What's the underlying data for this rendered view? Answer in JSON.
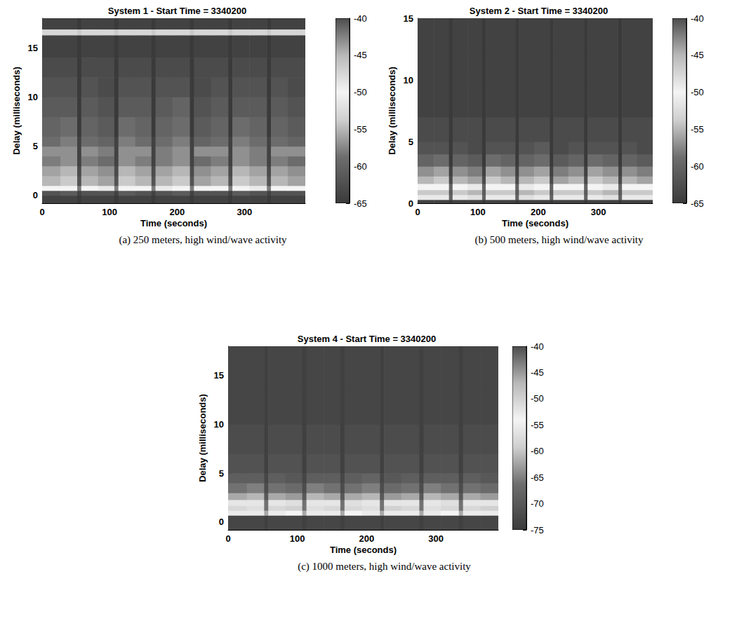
{
  "chart_data": [
    {
      "type": "heatmap",
      "title": "System 1 - Start Time = 3340200",
      "caption": "(a) 250 meters, high wind/wave activity",
      "xlabel": "Time (seconds)",
      "ylabel": "Delay (milliseconds)",
      "xlim": [
        0,
        390
      ],
      "xticks": [
        0,
        100,
        200,
        300
      ],
      "ylim": [
        -0.8,
        18
      ],
      "yticks": [
        0,
        5,
        10,
        15
      ],
      "time_bins": [
        0,
        27,
        52,
        58,
        83,
        107,
        113,
        138,
        162,
        168,
        193,
        219,
        225,
        250,
        276,
        282,
        307,
        333,
        339,
        364,
        390
      ],
      "delay_bins": [
        -0.8,
        0,
        0.5,
        1,
        2,
        3,
        4,
        5,
        6,
        8,
        10,
        12,
        14,
        16.3,
        16.9,
        18
      ],
      "cells": [
        [
          -64,
          -64,
          -65,
          -64,
          -64,
          -65,
          -64,
          -64,
          -65,
          -64,
          -64,
          -65,
          -64,
          -64,
          -65,
          -64,
          -64,
          -65,
          -64,
          -64
        ],
        [
          -62,
          -61,
          -64,
          -62,
          -62,
          -64,
          -61,
          -62,
          -64,
          -62,
          -61,
          -64,
          -62,
          -62,
          -64,
          -61,
          -62,
          -64,
          -62,
          -62
        ],
        [
          -50,
          -50,
          -58,
          -50,
          -51,
          -58,
          -50,
          -50,
          -58,
          -51,
          -50,
          -58,
          -50,
          -50,
          -58,
          -50,
          -51,
          -58,
          -50,
          -50
        ],
        [
          -55,
          -54,
          -62,
          -55,
          -56,
          -62,
          -54,
          -55,
          -62,
          -55,
          -54,
          -62,
          -56,
          -55,
          -62,
          -54,
          -55,
          -62,
          -55,
          -56
        ],
        [
          -56,
          -55,
          -63,
          -56,
          -57,
          -63,
          -55,
          -56,
          -63,
          -56,
          -55,
          -63,
          -57,
          -56,
          -63,
          -55,
          -56,
          -63,
          -56,
          -57
        ],
        [
          -58,
          -57,
          -64,
          -58,
          -59,
          -64,
          -57,
          -58,
          -64,
          -58,
          -57,
          -64,
          -59,
          -58,
          -64,
          -57,
          -58,
          -64,
          -58,
          -59
        ],
        [
          -57,
          -57,
          -64,
          -57,
          -58,
          -64,
          -57,
          -57,
          -64,
          -58,
          -57,
          -64,
          -57,
          -57,
          -64,
          -57,
          -58,
          -64,
          -57,
          -57
        ],
        [
          -59,
          -58,
          -64,
          -59,
          -60,
          -64,
          -58,
          -59,
          -64,
          -59,
          -58,
          -64,
          -60,
          -59,
          -64,
          -58,
          -59,
          -64,
          -59,
          -60
        ],
        [
          -60,
          -59,
          -65,
          -60,
          -61,
          -65,
          -59,
          -60,
          -65,
          -60,
          -59,
          -65,
          -61,
          -60,
          -65,
          -59,
          -60,
          -65,
          -60,
          -61
        ],
        [
          -61,
          -61,
          -65,
          -61,
          -62,
          -65,
          -61,
          -61,
          -65,
          -61,
          -60,
          -65,
          -62,
          -61,
          -65,
          -61,
          -61,
          -65,
          -61,
          -62
        ],
        [
          -62,
          -62,
          -65,
          -62,
          -63,
          -65,
          -62,
          -62,
          -65,
          -62,
          -62,
          -65,
          -63,
          -62,
          -65,
          -62,
          -62,
          -65,
          -62,
          -63
        ],
        [
          -63,
          -63,
          -65,
          -63,
          -63,
          -65,
          -63,
          -63,
          -65,
          -63,
          -63,
          -65,
          -63,
          -63,
          -65,
          -63,
          -63,
          -65,
          -63,
          -63
        ],
        [
          -64,
          -64,
          -65,
          -64,
          -64,
          -65,
          -64,
          -64,
          -65,
          -64,
          -64,
          -65,
          -64,
          -64,
          -65,
          -64,
          -64,
          -65,
          -64,
          -64
        ],
        [
          -53,
          -53,
          -54,
          -53,
          -53,
          -54,
          -53,
          -53,
          -54,
          -53,
          -53,
          -54,
          -53,
          -53,
          -54,
          -53,
          -53,
          -54,
          -53,
          -53
        ],
        [
          -64,
          -64,
          -65,
          -64,
          -64,
          -65,
          -64,
          -64,
          -65,
          -64,
          -64,
          -65,
          -64,
          -64,
          -65,
          -64,
          -64,
          -65,
          -64,
          -64
        ]
      ],
      "colorbar": {
        "range": [
          -65,
          -40
        ],
        "ticks": [
          -40,
          -45,
          -50,
          -55,
          -60,
          -65
        ]
      }
    },
    {
      "type": "heatmap",
      "title": "System 2 - Start Time = 3340200",
      "caption": "(b) 500 meters, high wind/wave activity",
      "xlabel": "Time (seconds)",
      "ylabel": "Delay (milliseconds)",
      "xlim": [
        0,
        390
      ],
      "xticks": [
        0,
        100,
        200,
        300
      ],
      "ylim": [
        0,
        15
      ],
      "yticks": [
        0,
        5,
        10,
        15
      ],
      "time_bins": [
        0,
        27,
        52,
        58,
        83,
        107,
        113,
        138,
        162,
        168,
        193,
        219,
        225,
        250,
        276,
        282,
        307,
        333,
        339,
        364,
        390
      ],
      "delay_bins": [
        0,
        0.3,
        0.7,
        1.1,
        1.6,
        2.2,
        3,
        4,
        5,
        7,
        10,
        12.5,
        15
      ],
      "cells": [
        [
          -64,
          -64,
          -65,
          -64,
          -64,
          -65,
          -64,
          -64,
          -65,
          -64,
          -64,
          -65,
          -64,
          -64,
          -65,
          -64,
          -64,
          -65,
          -64,
          -64
        ],
        [
          -51,
          -51,
          -60,
          -51,
          -52,
          -60,
          -51,
          -51,
          -60,
          -52,
          -51,
          -60,
          -51,
          -51,
          -60,
          -51,
          -52,
          -60,
          -51,
          -51
        ],
        [
          -54,
          -54,
          -61,
          -54,
          -55,
          -61,
          -54,
          -54,
          -61,
          -55,
          -54,
          -61,
          -54,
          -54,
          -61,
          -54,
          -55,
          -61,
          -54,
          -54
        ],
        [
          -50,
          -50,
          -60,
          -50,
          -51,
          -60,
          -50,
          -50,
          -60,
          -51,
          -50,
          -60,
          -50,
          -50,
          -60,
          -50,
          -51,
          -60,
          -50,
          -50
        ],
        [
          -55,
          -54,
          -63,
          -55,
          -56,
          -63,
          -54,
          -55,
          -63,
          -55,
          -54,
          -63,
          -56,
          -55,
          -63,
          -54,
          -55,
          -63,
          -55,
          -56
        ],
        [
          -57,
          -56,
          -64,
          -57,
          -58,
          -64,
          -56,
          -57,
          -64,
          -57,
          -56,
          -64,
          -58,
          -57,
          -64,
          -56,
          -57,
          -64,
          -57,
          -58
        ],
        [
          -60,
          -59,
          -65,
          -60,
          -61,
          -65,
          -59,
          -60,
          -65,
          -60,
          -59,
          -65,
          -61,
          -60,
          -65,
          -59,
          -60,
          -65,
          -60,
          -61
        ],
        [
          -62,
          -62,
          -65,
          -62,
          -63,
          -65,
          -62,
          -62,
          -65,
          -62,
          -61,
          -65,
          -63,
          -62,
          -65,
          -62,
          -62,
          -65,
          -62,
          -63
        ],
        [
          -63,
          -63,
          -65,
          -63,
          -63,
          -65,
          -63,
          -63,
          -65,
          -63,
          -63,
          -65,
          -63,
          -63,
          -65,
          -63,
          -63,
          -65,
          -63,
          -63
        ],
        [
          -64,
          -64,
          -65,
          -64,
          -64,
          -65,
          -64,
          -64,
          -65,
          -64,
          -64,
          -65,
          -64,
          -64,
          -65,
          -64,
          -64,
          -65,
          -64,
          -64
        ],
        [
          -64,
          -64,
          -65,
          -64,
          -64,
          -65,
          -64,
          -64,
          -65,
          -64,
          -64,
          -65,
          -64,
          -64,
          -65,
          -64,
          -64,
          -65,
          -64,
          -64
        ],
        [
          -64,
          -64,
          -65,
          -64,
          -64,
          -65,
          -64,
          -64,
          -65,
          -64,
          -64,
          -65,
          -64,
          -64,
          -65,
          -64,
          -64,
          -65,
          -64,
          -64
        ]
      ],
      "colorbar": {
        "range": [
          -65,
          -40
        ],
        "ticks": [
          -40,
          -45,
          -50,
          -55,
          -60,
          -65
        ]
      }
    },
    {
      "type": "heatmap",
      "title": "System 4 - Start Time = 3340200",
      "caption": "(c) 1000 meters, high wind/wave activity",
      "xlabel": "Time (seconds)",
      "ylabel": "Delay (milliseconds)",
      "xlim": [
        0,
        390
      ],
      "xticks": [
        0,
        100,
        200,
        300
      ],
      "ylim": [
        -0.8,
        18
      ],
      "yticks": [
        0,
        5,
        10,
        15
      ],
      "time_bins": [
        0,
        27,
        52,
        58,
        83,
        107,
        113,
        138,
        162,
        168,
        193,
        219,
        225,
        250,
        276,
        282,
        307,
        333,
        339,
        364,
        390
      ],
      "delay_bins": [
        -0.8,
        0.7,
        1.2,
        1.7,
        2.3,
        3,
        4,
        5,
        7,
        10,
        14,
        18
      ],
      "cells": [
        [
          -73,
          -73,
          -74,
          -73,
          -73,
          -74,
          -73,
          -73,
          -74,
          -73,
          -73,
          -74,
          -73,
          -73,
          -74,
          -73,
          -73,
          -74,
          -73,
          -73
        ],
        [
          -53,
          -53,
          -62,
          -53,
          -54,
          -62,
          -53,
          -53,
          -62,
          -54,
          -53,
          -62,
          -53,
          -53,
          -62,
          -53,
          -54,
          -62,
          -53,
          -53
        ],
        [
          -58,
          -57,
          -66,
          -58,
          -59,
          -66,
          -57,
          -58,
          -66,
          -58,
          -57,
          -66,
          -59,
          -58,
          -66,
          -57,
          -58,
          -66,
          -58,
          -59
        ],
        [
          -56,
          -56,
          -66,
          -56,
          -57,
          -66,
          -56,
          -56,
          -66,
          -57,
          -56,
          -66,
          -56,
          -56,
          -66,
          -56,
          -57,
          -66,
          -56,
          -56
        ],
        [
          -62,
          -61,
          -70,
          -62,
          -63,
          -70,
          -61,
          -62,
          -70,
          -62,
          -61,
          -70,
          -63,
          -62,
          -70,
          -61,
          -62,
          -70,
          -62,
          -63
        ],
        [
          -66,
          -65,
          -72,
          -66,
          -67,
          -72,
          -65,
          -66,
          -72,
          -66,
          -65,
          -72,
          -67,
          -66,
          -72,
          -65,
          -66,
          -72,
          -66,
          -67
        ],
        [
          -69,
          -69,
          -73,
          -69,
          -70,
          -73,
          -69,
          -69,
          -73,
          -69,
          -68,
          -73,
          -70,
          -69,
          -73,
          -69,
          -69,
          -73,
          -69,
          -70
        ],
        [
          -71,
          -71,
          -74,
          -71,
          -71,
          -74,
          -71,
          -71,
          -74,
          -71,
          -71,
          -74,
          -71,
          -71,
          -74,
          -71,
          -71,
          -74,
          -71,
          -71
        ],
        [
          -72,
          -72,
          -74,
          -72,
          -72,
          -74,
          -72,
          -72,
          -74,
          -72,
          -72,
          -74,
          -72,
          -72,
          -74,
          -72,
          -72,
          -74,
          -72,
          -72
        ],
        [
          -73,
          -73,
          -74,
          -73,
          -73,
          -74,
          -73,
          -73,
          -74,
          -73,
          -73,
          -74,
          -73,
          -73,
          -74,
          -73,
          -73,
          -74,
          -73,
          -73
        ],
        [
          -73,
          -73,
          -74,
          -73,
          -73,
          -74,
          -73,
          -73,
          -74,
          -73,
          -73,
          -74,
          -73,
          -73,
          -74,
          -73,
          -73,
          -74,
          -73,
          -73
        ]
      ],
      "colorbar": {
        "range": [
          -75,
          -40
        ],
        "ticks": [
          -40,
          -45,
          -50,
          -55,
          -60,
          -65,
          -70,
          -75
        ]
      }
    }
  ]
}
